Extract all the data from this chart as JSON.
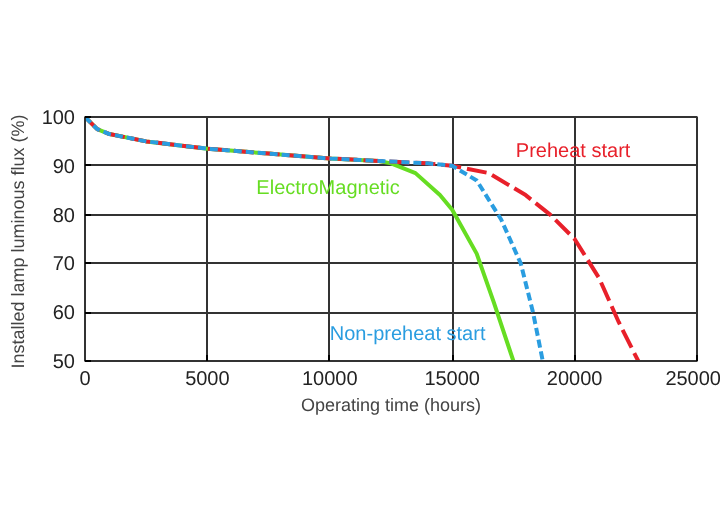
{
  "chart_data": {
    "type": "line",
    "xlabel": "Operating time (hours)",
    "ylabel": "Installed lamp luminous flux  (%)",
    "xlim": [
      0,
      25000
    ],
    "ylim": [
      50,
      100
    ],
    "xticks": [
      0,
      5000,
      10000,
      15000,
      20000,
      25000
    ],
    "yticks": [
      50,
      60,
      70,
      80,
      90,
      100
    ],
    "grid": true,
    "series": [
      {
        "name": "ElectroMagnetic",
        "color": "#66dd22",
        "line_style": "solid",
        "x": [
          0,
          500,
          1000,
          2500,
          5000,
          7500,
          10000,
          12000,
          12500,
          13500,
          14500,
          15000,
          16000,
          16700,
          17500
        ],
        "values": [
          100,
          97.5,
          96.5,
          95,
          93.5,
          92.5,
          91.5,
          91,
          90.5,
          88.5,
          84,
          81,
          72,
          62,
          50
        ]
      },
      {
        "name": "Preheat start",
        "color": "#e8202a",
        "line_style": "dashed",
        "x": [
          0,
          500,
          1000,
          2500,
          5000,
          7500,
          10000,
          12000,
          14000,
          15000,
          16500,
          18000,
          19000,
          20000,
          21000,
          21800,
          22600
        ],
        "values": [
          100,
          97.5,
          96.5,
          95,
          93.5,
          92.5,
          91.5,
          91,
          90.5,
          90,
          88.5,
          84,
          80,
          75,
          67,
          58,
          50
        ]
      },
      {
        "name": "Non-preheat start",
        "color": "#2a9de0",
        "line_style": "dotted",
        "x": [
          0,
          500,
          1000,
          2500,
          5000,
          7500,
          10000,
          12000,
          14000,
          15000,
          16000,
          17000,
          17800,
          18300,
          18700
        ],
        "values": [
          100,
          97.5,
          96.5,
          95,
          93.5,
          92.5,
          91.5,
          91,
          90.5,
          90,
          87,
          79,
          70,
          60,
          50
        ]
      }
    ]
  }
}
